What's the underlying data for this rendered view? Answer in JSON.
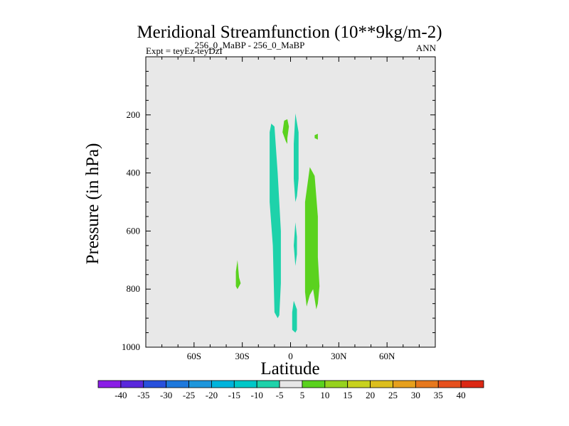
{
  "chart_data": {
    "type": "contour",
    "title": "Meridional Streamfunction (10**9kg/m-2)",
    "subtitle_left": "Expt = teyEz-teyDzI",
    "subtitle_center": "256_0_MaBP - 256_0_MaBP",
    "subtitle_right": "ANN",
    "xlabel": "Latitude",
    "ylabel": "Pressure (in hPa)",
    "xlim": [
      -90,
      90
    ],
    "ylim": [
      1000,
      0
    ],
    "x_ticks": [
      {
        "value": -60,
        "label": "60S"
      },
      {
        "value": -30,
        "label": "30S"
      },
      {
        "value": 0,
        "label": "0"
      },
      {
        "value": 30,
        "label": "30N"
      },
      {
        "value": 60,
        "label": "60N"
      }
    ],
    "y_ticks": [
      200,
      400,
      600,
      800,
      1000
    ],
    "y_tick_labels": [
      "200",
      "400",
      "600",
      "800",
      "1000"
    ],
    "background_color": "#e8e8e8",
    "contour_levels": [
      -40,
      -35,
      -30,
      -25,
      -20,
      -15,
      -10,
      -5,
      5,
      10,
      15,
      20,
      25,
      30,
      35,
      40
    ],
    "colorbar_labels": [
      "-40",
      "-35",
      "-30",
      "-25",
      "-20",
      "-15",
      "-10",
      "-5",
      "5",
      "10",
      "15",
      "20",
      "25",
      "30",
      "35",
      "40"
    ],
    "colorbar_colors": [
      "#8a1ee6",
      "#5a28dc",
      "#2850dc",
      "#1e78dc",
      "#1e96dc",
      "#00b4dc",
      "#00c8c8",
      "#1ed2aa",
      "#e6e6e6",
      "#5ad21e",
      "#96d21e",
      "#c8d21e",
      "#dcbe1e",
      "#e6a01e",
      "#e6781e",
      "#e6501e",
      "#dc2814"
    ],
    "regions": [
      {
        "name": "neg-5-band-main",
        "level": "-10 to -5",
        "color": "#1ed2aa",
        "points": [
          [
            -12,
            230
          ],
          [
            -10,
            240
          ],
          [
            -8,
            400
          ],
          [
            -6,
            600
          ],
          [
            -6,
            780
          ],
          [
            -7,
            890
          ],
          [
            -8,
            900
          ],
          [
            -10,
            880
          ],
          [
            -11,
            650
          ],
          [
            -13,
            500
          ],
          [
            -13,
            260
          ]
        ]
      },
      {
        "name": "neg-5-strip-eq-upper",
        "level": "-10 to -5",
        "color": "#1ed2aa",
        "points": [
          [
            3,
            195
          ],
          [
            5,
            260
          ],
          [
            5,
            420
          ],
          [
            4,
            480
          ],
          [
            3,
            500
          ],
          [
            2,
            420
          ],
          [
            2,
            300
          ]
        ]
      },
      {
        "name": "neg-5-strip-eq-mid",
        "level": "-10 to -5",
        "color": "#1ed2aa",
        "points": [
          [
            3,
            570
          ],
          [
            4,
            620
          ],
          [
            4,
            680
          ],
          [
            3,
            720
          ],
          [
            2,
            650
          ]
        ]
      },
      {
        "name": "neg-5-blob-eq-low",
        "level": "-10 to -5",
        "color": "#1ed2aa",
        "points": [
          [
            2,
            840
          ],
          [
            4,
            870
          ],
          [
            4,
            940
          ],
          [
            3,
            950
          ],
          [
            1,
            940
          ],
          [
            1,
            880
          ]
        ]
      },
      {
        "name": "pos-5-blob-15S",
        "level": "5 to 10",
        "color": "#5ad21e",
        "points": [
          [
            -33,
            700
          ],
          [
            -32,
            760
          ],
          [
            -31,
            780
          ],
          [
            -33,
            800
          ],
          [
            -34,
            790
          ],
          [
            -34,
            740
          ]
        ]
      },
      {
        "name": "pos-5-blob-5S",
        "level": "5 to 10",
        "color": "#5ad21e",
        "points": [
          [
            -4,
            220
          ],
          [
            -2,
            215
          ],
          [
            -1,
            240
          ],
          [
            -2,
            280
          ],
          [
            -2,
            300
          ],
          [
            -3,
            290
          ],
          [
            -5,
            260
          ]
        ]
      },
      {
        "name": "pos-5-blob-15N",
        "level": "5 to 10",
        "color": "#5ad21e",
        "points": [
          [
            15,
            270
          ],
          [
            17,
            265
          ],
          [
            17,
            285
          ],
          [
            15,
            280
          ]
        ]
      },
      {
        "name": "pos-5-band-main",
        "level": "5 to 10",
        "color": "#5ad21e",
        "points": [
          [
            12,
            380
          ],
          [
            15,
            410
          ],
          [
            17,
            550
          ],
          [
            17,
            690
          ],
          [
            18,
            790
          ],
          [
            17,
            850
          ],
          [
            16,
            870
          ],
          [
            14,
            800
          ],
          [
            12,
            820
          ],
          [
            10,
            860
          ],
          [
            9,
            810
          ],
          [
            9,
            500
          ]
        ]
      }
    ]
  }
}
